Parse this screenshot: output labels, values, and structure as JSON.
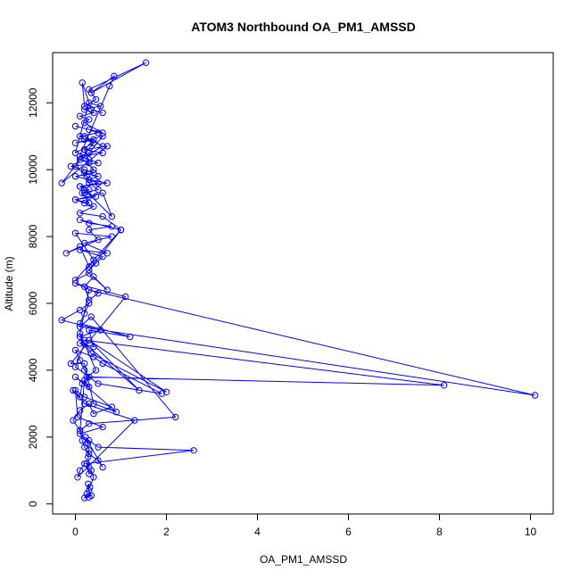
{
  "chart_data": {
    "type": "line",
    "title": "ATOM3 Northbound OA_PM1_AMSSD",
    "xlabel": "OA_PM1_AMSSD",
    "ylabel": "Altitude (m)",
    "xlim": [
      -0.5,
      10.5
    ],
    "ylim": [
      -300,
      13500
    ],
    "x_ticks": [
      0,
      2,
      4,
      6,
      8,
      10
    ],
    "y_ticks": [
      0,
      2000,
      4000,
      6000,
      8000,
      10000,
      12000
    ],
    "grid": false,
    "legend": "none",
    "color": "#0000FF",
    "marker": "open-circle",
    "series": [
      {
        "x": [
          0.3,
          0.25,
          0.2,
          0.35,
          0.3,
          0.28,
          0.32,
          0.4,
          0.35,
          0.3,
          0.25,
          0.3,
          0.28,
          0.3,
          0.27,
          0.22,
          0.6,
          0.5,
          0.3,
          0.2,
          0.15,
          0.1,
          -0.05,
          0.1,
          0.3,
          0.4,
          0.8,
          0.2,
          0.0,
          0.05,
          0.6,
          0.1,
          0.3,
          0.5,
          2.6,
          0.2,
          0.1,
          0.05,
          1.3,
          0.2,
          -0.05,
          0.1,
          0.15,
          0.3,
          0.2,
          0.1,
          0.0,
          0.4,
          0.6,
          1.9,
          0.5,
          0.0,
          0.2,
          1.4,
          0.3,
          2.0,
          0.35,
          0.1,
          0.55,
          -0.3,
          0.1,
          0.3,
          0.2,
          0.1,
          1.2,
          0.3,
          0.4,
          0.1,
          0.2,
          8.1,
          0.25,
          0.45,
          0.1,
          0.3,
          10.1,
          0.1,
          0.35,
          2.2,
          0.3,
          0.1,
          0.2,
          0.3,
          0.0,
          0.9,
          0.4,
          0.2,
          -0.1,
          1.1,
          0.0,
          0.5,
          0.3,
          0.2,
          0.4,
          0.7,
          0.3,
          0.0,
          1.0,
          0.3,
          0.45,
          0.6,
          0.1,
          0.7,
          0.2,
          0.8,
          0.0,
          0.4,
          0.3,
          0.1,
          -0.2,
          0.5,
          0.3,
          0.8,
          0.3,
          0.1,
          1.0,
          0.6,
          0.1,
          0.4,
          0.2,
          0.0,
          0.3,
          0.6,
          0.8,
          0.2,
          0.1,
          0.5,
          0.3,
          0.0,
          0.4,
          0.2,
          -0.1,
          0.5,
          0.3,
          0.1,
          0.6,
          0.2,
          0.7,
          -0.3,
          0.4,
          0.2,
          0.1,
          0.5,
          0.3,
          0.0,
          0.6,
          0.2,
          0.3,
          0.1,
          0.4,
          0.2,
          0.55,
          0.3,
          0.0,
          0.4,
          0.2,
          0.6,
          0.1,
          0.3,
          0.2,
          0.4,
          0.0,
          0.6,
          0.3,
          0.1,
          0.4,
          0.2,
          0.5,
          0.3,
          0.7,
          0.1,
          0.3,
          0.2,
          0.45,
          0.0,
          0.3,
          0.15,
          0.5,
          0.3,
          0.25,
          0.0,
          0.75,
          0.85,
          0.35,
          1.55,
          0.3,
          0.45,
          0.2,
          0.15,
          0.35,
          0.6
        ],
        "y": [
          200,
          300,
          180,
          250,
          400,
          600,
          500,
          800,
          1000,
          900,
          1200,
          1100,
          1400,
          1600,
          1800,
          2000,
          1100,
          1300,
          1500,
          1700,
          1900,
          2200,
          2500,
          2800,
          3000,
          2700,
          2900,
          3200,
          3400,
          2600,
          2300,
          2100,
          1900,
          1700,
          1600,
          1200,
          1000,
          800,
          2500,
          3000,
          3400,
          3200,
          3600,
          3800,
          4000,
          4300,
          4600,
          4400,
          4200,
          3300,
          3600,
          4100,
          4800,
          3400,
          4900,
          3350,
          4500,
          5000,
          5200,
          5500,
          5800,
          6000,
          5700,
          5400,
          5000,
          5200,
          4700,
          4800,
          4900,
          3550,
          3800,
          4000,
          5100,
          6400,
          3250,
          5300,
          5600,
          2600,
          2400,
          2200,
          3700,
          3500,
          3800,
          2750,
          3000,
          4200,
          4200,
          6200,
          6600,
          6300,
          6100,
          6500,
          6800,
          6400,
          6900,
          6700,
          8200,
          7000,
          7200,
          7400,
          7600,
          7500,
          7800,
          8000,
          8100,
          7300,
          7100,
          7700,
          7500,
          7900,
          8200,
          8300,
          8400,
          8500,
          8200,
          8600,
          8700,
          8900,
          9000,
          9100,
          9200,
          9300,
          8600,
          9400,
          9500,
          9600,
          9700,
          9800,
          9900,
          10000,
          10100,
          10200,
          10300,
          10400,
          10500,
          10600,
          10700,
          9600,
          10800,
          10900,
          11000,
          11100,
          11200,
          11300,
          11100,
          11400,
          11500,
          11600,
          11700,
          11800,
          11900,
          12000,
          10500,
          10800,
          11000,
          10700,
          10300,
          10200,
          10600,
          10900,
          10800,
          11000,
          10500,
          10400,
          10000,
          9900,
          9800,
          9700,
          9600,
          9500,
          9400,
          9300,
          9200,
          9100,
          9000,
          9300,
          9400,
          9600,
          9800,
          10100,
          12500,
          12800,
          12300,
          13200,
          12400,
          12100,
          11900,
          12600,
          11800,
          11700
        ]
      }
    ]
  }
}
